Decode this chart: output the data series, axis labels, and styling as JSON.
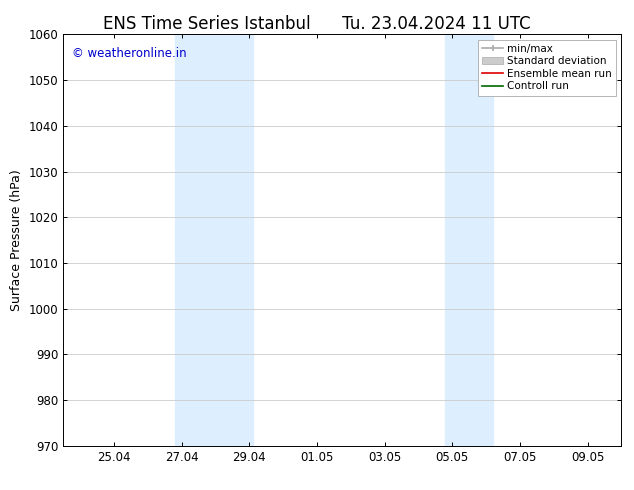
{
  "title_left": "ENS Time Series Istanbul",
  "title_right": "Tu. 23.04.2024 11 UTC",
  "ylabel": "Surface Pressure (hPa)",
  "ylim": [
    970,
    1060
  ],
  "yticks": [
    970,
    980,
    990,
    1000,
    1010,
    1020,
    1030,
    1040,
    1050,
    1060
  ],
  "xtick_labels": [
    "25.04",
    "27.04",
    "29.04",
    "01.05",
    "03.05",
    "05.05",
    "07.05",
    "09.05"
  ],
  "xtick_positions": [
    2,
    4,
    6,
    8,
    10,
    12,
    14,
    16
  ],
  "xlim": [
    0.5,
    17.0
  ],
  "shaded_bands": [
    {
      "xstart": 3.8,
      "xend": 6.1,
      "color": "#ddeeff"
    },
    {
      "xstart": 11.8,
      "xend": 13.2,
      "color": "#ddeeff"
    }
  ],
  "watermark_text": "© weatheronline.in",
  "watermark_color": "#0000cc",
  "background_color": "#ffffff",
  "grid_color": "#cccccc",
  "title_fontsize": 12,
  "axis_fontsize": 9,
  "tick_fontsize": 8.5
}
